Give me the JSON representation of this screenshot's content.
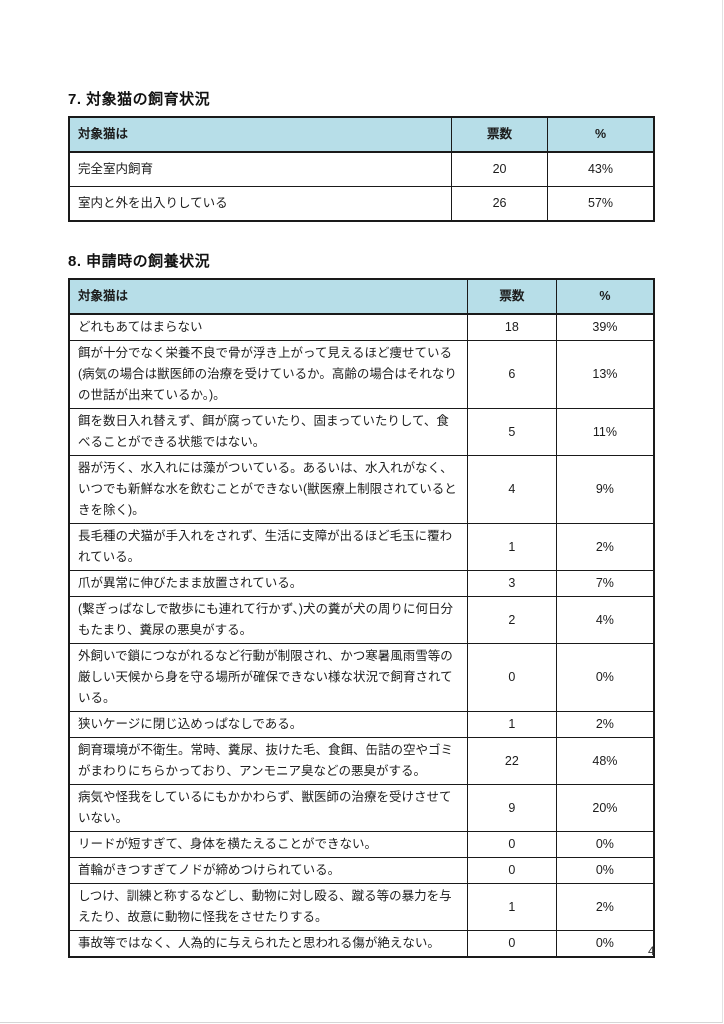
{
  "page": {
    "number": "4"
  },
  "colors": {
    "header_bg": "#b7dee8",
    "table_border": "#1a1a1a",
    "text": "#1c1c1c"
  },
  "section7": {
    "title": "7. 対象猫の飼育状況",
    "table": {
      "headers": [
        "対象猫は",
        "票数",
        "%"
      ],
      "rows": [
        {
          "label": "完全室内飼育",
          "votes": "20",
          "pct": "43%"
        },
        {
          "label": "室内と外を出入りしている",
          "votes": "26",
          "pct": "57%"
        }
      ]
    }
  },
  "section8": {
    "title": "8. 申請時の飼養状況",
    "table": {
      "headers": [
        "対象猫は",
        "票数",
        "%"
      ],
      "rows": [
        {
          "label": "どれもあてはまらない",
          "votes": "18",
          "pct": "39%"
        },
        {
          "label": "餌が十分でなく栄養不良で骨が浮き上がって見えるほど痩せている(病気の場合は獣医師の治療を受けているか。高齢の場合はそれなりの世話が出来ているか。)。",
          "votes": "6",
          "pct": "13%"
        },
        {
          "label": "餌を数日入れ替えず、餌が腐っていたり、固まっていたりして、食べることができる状態ではない。",
          "votes": "5",
          "pct": "11%"
        },
        {
          "label": "器が汚く、水入れには藻がついている。あるいは、水入れがなく、いつでも新鮮な水を飲むことができない(獣医療上制限されているときを除く)。",
          "votes": "4",
          "pct": "9%"
        },
        {
          "label": "長毛種の犬猫が手入れをされず、生活に支障が出るほど毛玉に覆われている。",
          "votes": "1",
          "pct": "2%"
        },
        {
          "label": "爪が異常に伸びたまま放置されている。",
          "votes": "3",
          "pct": "7%"
        },
        {
          "label": "(繋ぎっぱなしで散歩にも連れて行かず、)犬の糞が犬の周りに何日分もたまり、糞尿の悪臭がする。",
          "votes": "2",
          "pct": "4%"
        },
        {
          "label": "外飼いで鎖につながれるなど行動が制限され、かつ寒暑風雨雪等の厳しい天候から身を守る場所が確保できない様な状況で飼育されている。",
          "votes": "0",
          "pct": "0%"
        },
        {
          "label": "狭いケージに閉じ込めっぱなしである。",
          "votes": "1",
          "pct": "2%"
        },
        {
          "label": "飼育環境が不衛生。常時、糞尿、抜けた毛、食餌、缶詰の空やゴミがまわりにちらかっており、アンモニア臭などの悪臭がする。",
          "votes": "22",
          "pct": "48%"
        },
        {
          "label": "病気や怪我をしているにもかかわらず、獣医師の治療を受けさせていない。",
          "votes": "9",
          "pct": "20%"
        },
        {
          "label": "リードが短すぎて、身体を横たえることができない。",
          "votes": "0",
          "pct": "0%"
        },
        {
          "label": "首輪がきつすぎてノドが締めつけられている。",
          "votes": "0",
          "pct": "0%"
        },
        {
          "label": "しつけ、訓練と称するなどし、動物に対し殴る、蹴る等の暴力を与えたり、故意に動物に怪我をさせたりする。",
          "votes": "1",
          "pct": "2%"
        },
        {
          "label": "事故等ではなく、人為的に与えられたと思われる傷が絶えない。",
          "votes": "0",
          "pct": "0%"
        }
      ]
    }
  }
}
